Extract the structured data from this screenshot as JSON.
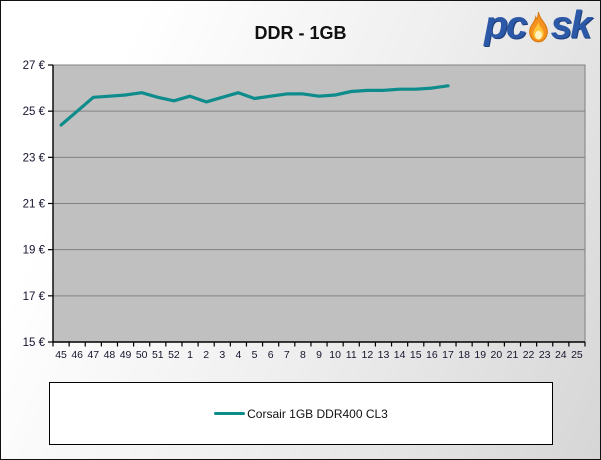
{
  "page": {
    "title": "DDR - 1GB"
  },
  "logo": {
    "prefix": "pc",
    "suffix": "sk",
    "color": "#2b59a8",
    "flame_outer": "#f5911e",
    "flame_inner": "#ffc53d",
    "flame_core": "#fff3c4"
  },
  "chart_data": {
    "type": "line",
    "title": "DDR - 1GB",
    "categories": [
      "45",
      "46",
      "47",
      "48",
      "49",
      "50",
      "51",
      "52",
      "1",
      "2",
      "3",
      "4",
      "5",
      "6",
      "7",
      "8",
      "9",
      "10",
      "11",
      "12",
      "13",
      "14",
      "15",
      "16",
      "17",
      "18",
      "19",
      "20",
      "21",
      "22",
      "23",
      "24",
      "25"
    ],
    "series": [
      {
        "name": "Corsair 1GB DDR400 CL3",
        "color": "#0e8c8c",
        "values": [
          24.4,
          25.0,
          25.6,
          25.65,
          25.7,
          25.8,
          25.6,
          25.45,
          25.65,
          25.4,
          25.6,
          25.8,
          25.55,
          25.65,
          25.75,
          25.75,
          25.65,
          25.7,
          25.85,
          25.9,
          25.9,
          25.95,
          25.95,
          26.0,
          26.1,
          null,
          null,
          null,
          null,
          null,
          null,
          null,
          null
        ]
      }
    ],
    "xlabel": "",
    "ylabel": "",
    "yticks": [
      15,
      17,
      19,
      21,
      23,
      25,
      27
    ],
    "ytick_suffix": " €",
    "ylim": [
      15,
      27
    ],
    "grid": true,
    "legend_position": "bottom",
    "plot_bg": "#c0c0c0",
    "grid_color": "#828282",
    "axis_color": "#000000",
    "tick_label_color": "#14142e"
  }
}
